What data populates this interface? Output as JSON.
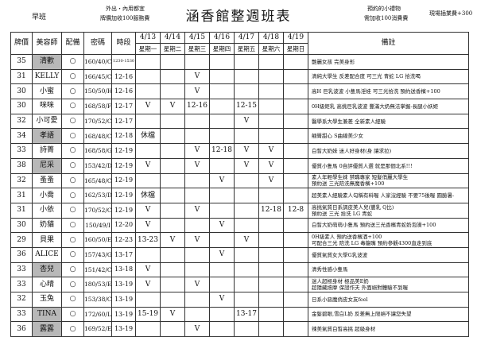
{
  "header": {
    "shift": "早班",
    "left_notes": [
      "外出・內用都宜",
      "牌價加收100服務費"
    ],
    "title": "涵香館整週班表",
    "right_notes": [
      "預約的小禮物",
      "需加收100消費費"
    ],
    "far_right": "現場插業費+300"
  },
  "table": {
    "columns": [
      "牌價",
      "美容師",
      "配備",
      "密碼",
      "時段"
    ],
    "dates": [
      "4/13",
      "4/14",
      "4/15",
      "4/16",
      "4/17",
      "4/18",
      "4/19"
    ],
    "weekdays": [
      "星期一",
      "星期二",
      "星期三",
      "星期四",
      "星期五",
      "星期六",
      "星期日"
    ],
    "notes_header": "備註",
    "rows": [
      {
        "price": "35",
        "name": "清歡",
        "highlight": true,
        "equip": "○",
        "code": "160/40/C",
        "time": "1230-1530",
        "days": [
          null,
          null,
          null,
          null,
          null,
          null,
          null
        ],
        "notes": [
          "艷麗女孩 完美身形"
        ]
      },
      {
        "price": "31",
        "name": "KELLY",
        "highlight": false,
        "equip": "○",
        "code": "166/45/C",
        "time": "12-16",
        "days": [
          null,
          null,
          "V",
          null,
          null,
          null,
          null
        ],
        "notes": [
          "清純大學生 反差配合度 可三光 青蛇 LG 拾洗喝"
        ]
      },
      {
        "price": "30",
        "name": "小蜜",
        "highlight": false,
        "equip": "○",
        "code": "150/50/H",
        "time": "12-16",
        "days": [
          null,
          null,
          "V",
          null,
          null,
          null,
          null
        ],
        "notes": [
          "高H 巨乳波波 小隻馬淫娃 可三光拾洗 預約送香檳+100"
        ]
      },
      {
        "price": "30",
        "name": "咪咪",
        "highlight": false,
        "equip": "○",
        "code": "168/58/F",
        "time": "12-17",
        "days": [
          "V",
          "V",
          "12-16",
          null,
          "12-15",
          null,
          null
        ],
        "notes": [
          "0H級鉅乳 高挑巨乳波波 豐滿大奶無法掌握-長腿小妖姬"
        ]
      },
      {
        "price": "32",
        "name": "小可愛",
        "highlight": false,
        "equip": "○",
        "code": "170/52/C",
        "time": "12-17",
        "days": [
          null,
          null,
          null,
          null,
          "V",
          null,
          null
        ],
        "notes": [
          "醫學系大學生兼差 全新素人經驗"
        ]
      },
      {
        "price": "34",
        "name": "孝語",
        "highlight": true,
        "equip": "○",
        "code": "168/48/C",
        "time": "12-18",
        "days": [
          "休檔",
          null,
          null,
          null,
          null,
          null,
          null
        ],
        "notes": [
          "翹臀甜心 S曲線美少女"
        ]
      },
      {
        "price": "33",
        "name": "詩菁",
        "highlight": false,
        "equip": "○",
        "code": "168/58/G",
        "time": "12-19",
        "days": [
          null,
          null,
          "V",
          "12-18",
          "V",
          "V",
          null
        ],
        "notes": [
          "白皙大奶妹 迷人好身材(身 讓求拉)"
        ]
      },
      {
        "price": "38",
        "name": "尼采",
        "highlight": true,
        "equip": "○",
        "code": "153/42/D",
        "time": "12-19",
        "days": [
          "V",
          null,
          "V",
          null,
          "V",
          "V",
          null
        ],
        "notes": [
          "優質小隻馬 0自評優質人選 就是那個北系!!!"
        ]
      },
      {
        "price": "32",
        "name": "蚤蚤",
        "highlight": false,
        "equip": "○",
        "code": "165/48/C",
        "time": "12-19",
        "days": [
          null,
          null,
          null,
          "V",
          null,
          "V",
          null
        ],
        "notes": [
          "素人年輕學生妹 禁職專家 短髮俏麗大學生",
          "預約送 三光陪洗無魔香檳+100"
        ]
      },
      {
        "price": "31",
        "name": "小喬",
        "highlight": false,
        "equip": "○",
        "code": "162/53/D",
        "time": "12-19",
        "days": [
          "休檔",
          null,
          null,
          null,
          null,
          null,
          null
        ],
        "notes": [
          "超美素人經驗素人勾稱有料喔 人家沒經驗 不要75後喔 圓臉暑-"
        ]
      },
      {
        "price": "31",
        "name": "小依",
        "highlight": false,
        "equip": "○",
        "code": "170/52/C",
        "time": "12-19",
        "days": [
          "V",
          null,
          "V",
          null,
          null,
          "12-18",
          "12-8"
        ],
        "notes": [
          "高挑氣質日系調皮美人兒(豐乳 Q比)",
          "預約送 三光 拾洗 LG 青蛇"
        ]
      },
      {
        "price": "30",
        "name": "奶貓",
        "highlight": false,
        "equip": "○",
        "code": "150/49/I",
        "time": "12-20",
        "days": [
          "V",
          null,
          null,
          "V",
          null,
          null,
          null
        ],
        "notes": [
          "白皙大奶萌萌小隻馬 預約送三光香檳青蛇奶泡澡+100"
        ]
      },
      {
        "price": "29",
        "name": "貝果",
        "highlight": false,
        "equip": "○",
        "code": "160/50/E",
        "time": "12-23",
        "days": [
          "13-23",
          "V",
          "V",
          null,
          "V",
          null,
          null
        ],
        "notes": [
          "0H級素人 預約送香檳酒+100",
          "可配合三光 陪洗 LG 毒龍嘴 預約參觀4300直走到底"
        ]
      },
      {
        "price": "36",
        "name": "ALICE",
        "highlight": false,
        "equip": "○",
        "code": "157/43/G",
        "time": "13-17",
        "days": [
          null,
          null,
          null,
          "V",
          null,
          null,
          null
        ],
        "notes": [
          "優質氣質女大學G乳波波"
        ]
      },
      {
        "price": "33",
        "name": "杏兒",
        "highlight": true,
        "equip": "○",
        "code": "151/42/C",
        "time": "13-18",
        "days": [
          "V",
          null,
          null,
          null,
          null,
          null,
          null
        ],
        "notes": [
          "清秀性感小隻馬"
        ]
      },
      {
        "price": "33",
        "name": "心晴",
        "highlight": false,
        "equip": "○",
        "code": "180/53/E",
        "time": "13-19",
        "days": [
          "V",
          null,
          "V",
          null,
          null,
          null,
          null
        ],
        "notes": [
          "迷人超極身材 極品美E奶",
          "超隱藏按摩 保證作夫 外面絕對體驗不到喔"
        ]
      },
      {
        "price": "32",
        "name": "玉兔",
        "highlight": false,
        "equip": "○",
        "code": "153/38/C",
        "time": "13-19",
        "days": [
          null,
          null,
          null,
          "V",
          null,
          null,
          null
        ],
        "notes": [
          "日系小惡魔俏皮女友feel"
        ]
      },
      {
        "price": "33",
        "name": "TINA",
        "highlight": true,
        "equip": "○",
        "code": "172/60/L",
        "time": "13-19",
        "days": [
          "15-19",
          "V",
          null,
          null,
          "13-17",
          null,
          null
        ],
        "notes": [
          "金髮碧眼,雪白L奶 反差無上限絕不讓您失望"
        ]
      },
      {
        "price": "36",
        "name": "露露",
        "highlight": true,
        "equip": "○",
        "code": "169/52/E",
        "time": "13-19",
        "days": [
          null,
          null,
          "V",
          null,
          null,
          null,
          null
        ],
        "notes": [
          "辣美氣質白皙高挑 超級身材"
        ]
      }
    ]
  }
}
